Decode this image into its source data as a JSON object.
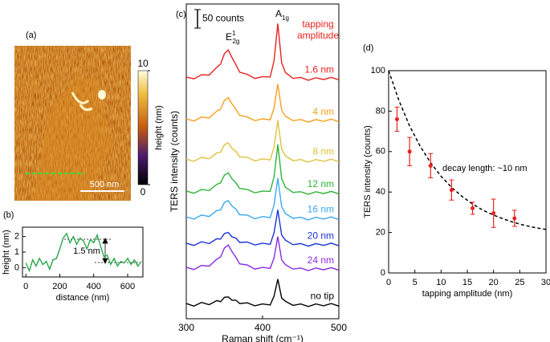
{
  "chart_data": [
    {
      "type": "image",
      "panel": "(a)",
      "colorbar_label": "height (nm)",
      "clim": [
        0,
        10
      ],
      "cticks": [
        0,
        10
      ],
      "scale_bar_label": "500 nm"
    },
    {
      "type": "line",
      "panel": "(b)",
      "xlabel": "distance (nm)",
      "ylabel": "height (nm)",
      "annotation": "1.5 nm",
      "x": [
        0,
        20,
        40,
        60,
        80,
        100,
        120,
        140,
        160,
        180,
        200,
        220,
        240,
        260,
        280,
        300,
        320,
        340,
        360,
        380,
        400,
        420,
        440,
        460,
        480,
        500,
        520,
        540,
        560,
        580,
        600,
        620,
        640,
        660,
        680
      ],
      "series": [
        {
          "color": "#27a84a",
          "values": [
            0.3,
            -0.2,
            0.5,
            0.1,
            0.6,
            0.2,
            0.4,
            -0.1,
            0.5,
            0.6,
            1.2,
            1.9,
            2.2,
            1.6,
            2.0,
            1.5,
            1.9,
            1.7,
            1.2,
            1.8,
            1.6,
            2.1,
            1.4,
            0.7,
            0.8,
            0.2,
            0.6,
            0.1,
            0.4,
            0.3,
            0.6,
            0.2,
            0.5,
            0.1,
            0.4
          ]
        }
      ],
      "xlim": [
        -20,
        690
      ],
      "xticks": [
        0,
        200,
        400,
        600
      ],
      "ylim": [
        -0.6,
        2.6
      ],
      "yticks": [
        0,
        1,
        2
      ]
    },
    {
      "type": "line",
      "panel": "(c)",
      "xlabel": "Raman shift (cm⁻¹)",
      "ylabel": "TERS intensity (counts)",
      "scale_bar": {
        "value": 50,
        "label": "50 counts"
      },
      "peak_labels": [
        {
          "base": "E",
          "sup": "1",
          "sub": "2g"
        },
        {
          "base": "A",
          "sub": "1g"
        }
      ],
      "legend_title": [
        "tapping",
        "amplitude"
      ],
      "x": [
        300,
        310,
        320,
        330,
        340,
        345,
        350,
        355,
        360,
        365,
        370,
        380,
        390,
        400,
        410,
        415,
        420,
        425,
        430,
        440,
        450,
        460,
        470,
        480,
        490,
        500
      ],
      "series": [
        {
          "name": "1.6 nm",
          "color": "#e8221e",
          "values": [
            653,
            648,
            659,
            658,
            679,
            688,
            716,
            726,
            705,
            686,
            666,
            660,
            649,
            654,
            653,
            697,
            797,
            691,
            665,
            649,
            652,
            644,
            651,
            646,
            652,
            645
          ]
        },
        {
          "name": "4 nm",
          "color": "#f5a01f",
          "values": [
            540,
            534,
            545,
            542,
            561,
            566,
            590,
            597,
            580,
            566,
            549,
            545,
            535,
            540,
            537,
            569,
            634,
            563,
            547,
            535,
            538,
            531,
            538,
            533,
            539,
            532
          ]
        },
        {
          "name": "8 nm",
          "color": "#e0c23c",
          "values": [
            431,
            425,
            436,
            432,
            448,
            450,
            470,
            475,
            460,
            452,
            437,
            436,
            426,
            432,
            429,
            463,
            536,
            458,
            440,
            427,
            430,
            423,
            430,
            425,
            431,
            424
          ]
        },
        {
          "name": "12 nm",
          "color": "#2db43a",
          "values": [
            345,
            339,
            349,
            346,
            363,
            367,
            388,
            394,
            378,
            367,
            352,
            349,
            340,
            345,
            344,
            383,
            471,
            378,
            355,
            341,
            343,
            336,
            343,
            338,
            344,
            337
          ]
        },
        {
          "name": "16 nm",
          "color": "#3aa8f0",
          "values": [
            275,
            269,
            280,
            276,
            292,
            294,
            314,
            319,
            304,
            296,
            281,
            280,
            270,
            276,
            273,
            307,
            380,
            302,
            284,
            271,
            274,
            267,
            274,
            269,
            275,
            268
          ]
        },
        {
          "name": "20 nm",
          "color": "#1c35d6",
          "values": [
            204,
            198,
            208,
            203,
            216,
            215,
            230,
            233,
            221,
            218,
            206,
            207,
            199,
            204,
            201,
            232,
            294,
            226,
            212,
            200,
            203,
            196,
            203,
            198,
            204,
            197
          ]
        },
        {
          "name": "24 nm",
          "color": "#8a2be2",
          "values": [
            139,
            133,
            144,
            142,
            161,
            167,
            191,
            199,
            181,
            166,
            148,
            145,
            134,
            139,
            136,
            164,
            222,
            159,
            146,
            134,
            137,
            130,
            137,
            132,
            138,
            131
          ]
        },
        {
          "name": "no tip",
          "color": "#000000",
          "values": [
            41,
            34,
            44,
            38,
            49,
            46,
            58,
            59,
            50,
            50,
            41,
            43,
            35,
            40,
            37,
            61,
            107,
            56,
            47,
            36,
            40,
            33,
            40,
            35,
            41,
            34
          ]
        }
      ],
      "xlim": [
        300,
        500
      ],
      "xticks": [
        300,
        400,
        500
      ],
      "ylim": [
        0,
        850
      ]
    },
    {
      "type": "scatter",
      "panel": "(d)",
      "xlabel": "tapping amplitude (nm)",
      "ylabel": "TERS intensity (counts)",
      "annotation": "decay length: ~10 nm",
      "x": [
        1.6,
        4,
        8,
        12,
        16,
        20,
        24
      ],
      "color": "#e8221e",
      "values": [
        76,
        60,
        53,
        41,
        32,
        29.5,
        27
      ],
      "errors": [
        6,
        7,
        6,
        5,
        3,
        7,
        4
      ],
      "fit": {
        "x": [
          0,
          2,
          4,
          6,
          8,
          10,
          12,
          14,
          16,
          18,
          20,
          22,
          24,
          26,
          28,
          30
        ],
        "values": [
          100,
          85.0,
          72.7,
          62.7,
          54.5,
          47.8,
          42.3,
          37.8,
          34.1,
          31.0,
          28.6,
          26.6,
          24.9,
          23.5,
          22.4,
          21.5
        ]
      },
      "xlim": [
        0,
        30
      ],
      "xticks": [
        0,
        5,
        10,
        15,
        20,
        25,
        30
      ],
      "ylim": [
        0,
        100
      ],
      "yticks": [
        0,
        20,
        40,
        60,
        80,
        100
      ]
    }
  ]
}
